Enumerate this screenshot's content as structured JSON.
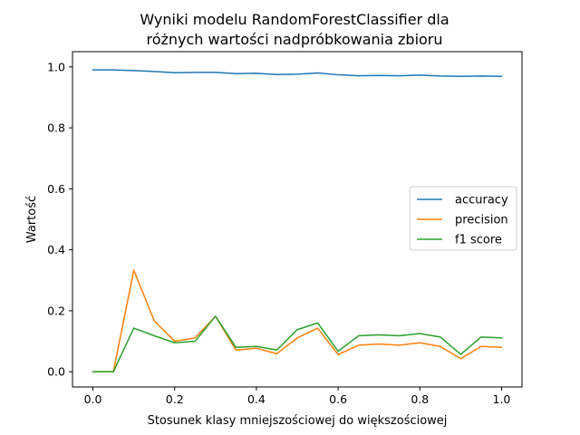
{
  "chart_data": {
    "type": "line",
    "title_lines": [
      "Wyniki modelu RandomForestClassifier dla",
      "różnych wartości nadpróbkowania zbioru"
    ],
    "xlabel": "Stosunek klasy mniejszościowej do większościowej",
    "ylabel": "Wartość",
    "xlim": [
      -0.05,
      1.05
    ],
    "ylim": [
      -0.05,
      1.05
    ],
    "xticks": [
      0.0,
      0.2,
      0.4,
      0.6,
      0.8,
      1.0
    ],
    "xtick_labels": [
      "0.0",
      "0.2",
      "0.4",
      "0.6",
      "0.8",
      "1.0"
    ],
    "yticks": [
      0.0,
      0.2,
      0.4,
      0.6,
      0.8,
      1.0
    ],
    "ytick_labels": [
      "0.0",
      "0.2",
      "0.4",
      "0.6",
      "0.8",
      "1.0"
    ],
    "grid": false,
    "legend_position": "center-right",
    "x": [
      0.0,
      0.05,
      0.1,
      0.15,
      0.2,
      0.25,
      0.3,
      0.35,
      0.4,
      0.45,
      0.5,
      0.55,
      0.6,
      0.65,
      0.7,
      0.75,
      0.8,
      0.85,
      0.9,
      0.95,
      1.0
    ],
    "series": [
      {
        "name": "accuracy",
        "color": "#1f77b4",
        "values": [
          0.99,
          0.99,
          0.988,
          0.985,
          0.981,
          0.982,
          0.982,
          0.978,
          0.979,
          0.975,
          0.976,
          0.98,
          0.974,
          0.971,
          0.972,
          0.971,
          0.973,
          0.97,
          0.969,
          0.97,
          0.969
        ]
      },
      {
        "name": "precision",
        "color": "#ff7f0e",
        "values": [
          0.0,
          0.0,
          0.333,
          0.167,
          0.1,
          0.111,
          0.182,
          0.071,
          0.077,
          0.059,
          0.111,
          0.143,
          0.056,
          0.087,
          0.091,
          0.087,
          0.095,
          0.083,
          0.043,
          0.083,
          0.08
        ]
      },
      {
        "name": "f1 score",
        "color": "#2ca02c",
        "values": [
          0.0,
          0.0,
          0.143,
          0.118,
          0.095,
          0.1,
          0.182,
          0.08,
          0.083,
          0.071,
          0.138,
          0.16,
          0.067,
          0.118,
          0.121,
          0.118,
          0.125,
          0.114,
          0.057,
          0.114,
          0.111
        ]
      }
    ]
  }
}
